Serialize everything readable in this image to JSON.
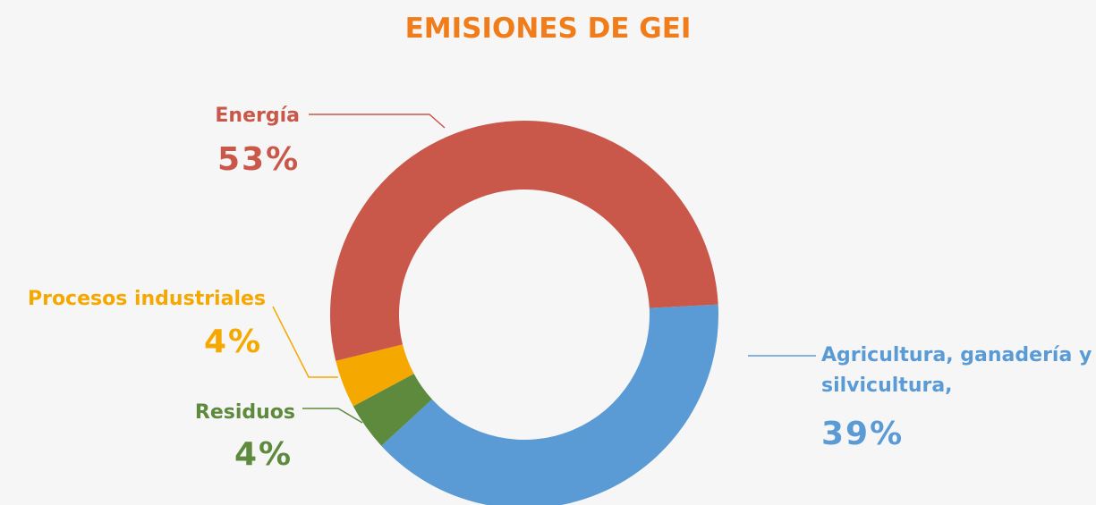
{
  "chart_data": {
    "type": "donut",
    "title": "EMISIONES DE GEI",
    "categories": [
      "Agricultura, ganadería y silvicultura,",
      "Residuos",
      "Procesos industriales",
      "Energía"
    ],
    "values": [
      39,
      4,
      4,
      53
    ],
    "value_labels": [
      "39%",
      "4%",
      "4%",
      "53%"
    ],
    "colors": [
      "#5b9bd5",
      "#5e8a3e",
      "#f5a800",
      "#c9574a"
    ]
  }
}
